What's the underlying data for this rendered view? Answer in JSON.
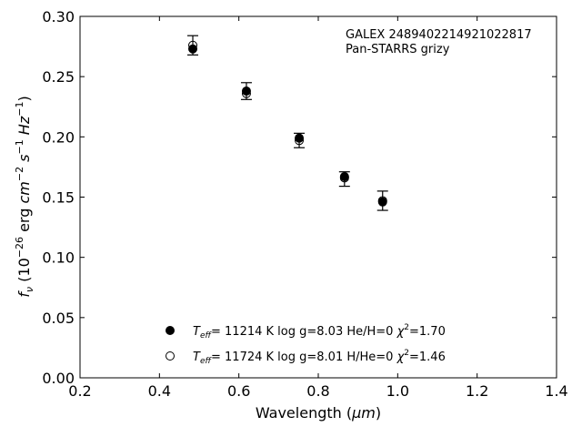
{
  "chart_data": {
    "type": "scatter",
    "xlabel_main": "Wavelength (",
    "xlabel_unit": "μm",
    "xlabel_close": ")",
    "ylabel_parts": {
      "f": "f",
      "nu": "ν",
      "open": " (10",
      "exp1": "−26",
      "erg": " erg ",
      "cm": "cm",
      "exp2": "−2",
      "s": " s",
      "exp3": "−1",
      "hz": " Hz",
      "exp4": "−1",
      "close": ")"
    },
    "xlim": [
      0.2,
      1.4
    ],
    "ylim": [
      0.0,
      0.3
    ],
    "xticks": [
      "0.2",
      "0.4",
      "0.6",
      "0.8",
      "1.0",
      "1.2",
      "1.4"
    ],
    "yticks": [
      "0.00",
      "0.05",
      "0.10",
      "0.15",
      "0.20",
      "0.25",
      "0.30"
    ],
    "annotation": [
      "GALEX 2489402214921022817",
      "Pan-STARRS grizy"
    ],
    "observed": {
      "x": [
        0.484,
        0.619,
        0.752,
        0.866,
        0.962
      ],
      "y": [
        0.276,
        0.238,
        0.197,
        0.165,
        0.147
      ],
      "yerr": [
        0.008,
        0.007,
        0.006,
        0.006,
        0.008
      ]
    },
    "series": [
      {
        "name_T": "T",
        "name_sub": "eff",
        "name_rest": "= 11214 K  log g=8.03  He/H=0  ",
        "name_chi": "χ",
        "name_chi_exp": "2",
        "name_chi_val": "=1.70",
        "marker": "filled",
        "x": [
          0.484,
          0.619,
          0.752,
          0.866,
          0.962
        ],
        "y": [
          0.273,
          0.238,
          0.199,
          0.167,
          0.146
        ]
      },
      {
        "name_T": "T",
        "name_sub": "eff",
        "name_rest": "= 11724 K  log g=8.01  H/He=0  ",
        "name_chi": "χ",
        "name_chi_exp": "2",
        "name_chi_val": "=1.46",
        "marker": "open",
        "x": [
          0.484,
          0.619,
          0.752,
          0.866,
          0.962
        ],
        "y": [
          0.276,
          0.236,
          0.197,
          0.166,
          0.147
        ]
      }
    ],
    "grid": false,
    "legend": "lower-center"
  }
}
